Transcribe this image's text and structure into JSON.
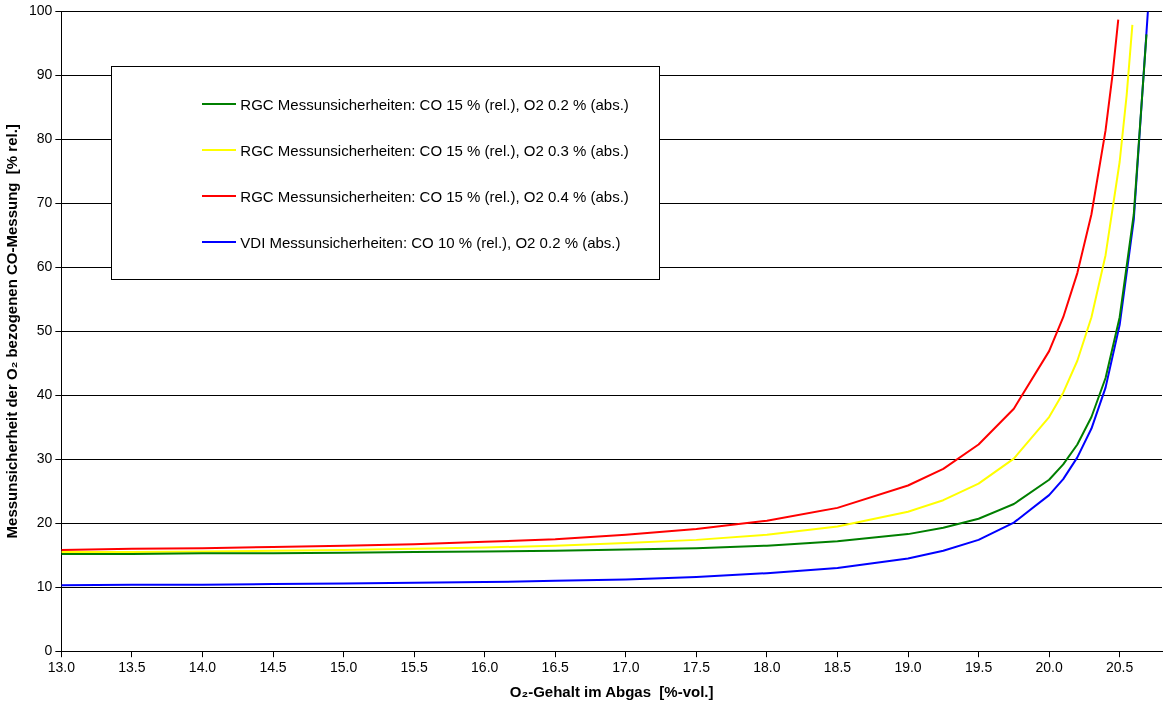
{
  "chart_data": {
    "type": "line",
    "xlabel": "O₂-Gehalt im Abgas  [%-vol.]",
    "ylabel": "Messunsicherheit der O₂ bezogenen CO-Messung  [% rel.]",
    "x": [
      13.0,
      13.5,
      14.0,
      14.5,
      15.0,
      15.5,
      16.0,
      16.5,
      17.0,
      17.5,
      18.0,
      18.5,
      19.0,
      19.25,
      19.5,
      19.75,
      20.0,
      20.1,
      20.2,
      20.3,
      20.4,
      20.5,
      20.6,
      20.69
    ],
    "series": [
      {
        "name": "RGC Messunsicherheiten: CO 15 % (rel.), O2 0.2 % (abs.)",
        "color": "#007f00",
        "values": [
          15.2,
          15.2,
          15.3,
          15.3,
          15.4,
          15.5,
          15.6,
          15.7,
          15.9,
          16.1,
          16.5,
          17.2,
          18.3,
          19.3,
          20.7,
          23.0,
          26.8,
          29.2,
          32.3,
          36.6,
          42.7,
          52.2,
          68.3,
          96.4
        ]
      },
      {
        "name": "RGC Messunsicherheiten: CO 15 % (rel.), O2 0.3 % (abs.)",
        "color": "#ffff00",
        "x": [
          13.0,
          13.5,
          14.0,
          14.5,
          15.0,
          15.5,
          16.0,
          16.5,
          17.0,
          17.5,
          18.0,
          18.5,
          19.0,
          19.25,
          19.5,
          19.75,
          20.0,
          20.1,
          20.2,
          20.3,
          20.4,
          20.5,
          20.55,
          20.59
        ],
        "values": [
          15.5,
          15.5,
          15.6,
          15.7,
          15.8,
          16.0,
          16.2,
          16.5,
          16.9,
          17.4,
          18.2,
          19.5,
          21.8,
          23.6,
          26.2,
          30.1,
          36.6,
          40.4,
          45.4,
          52.2,
          61.9,
          76.5,
          87.0,
          97.9
        ]
      },
      {
        "name": "RGC Messunsicherheiten: CO 15 % (rel.), O2 0.4 % (abs.)",
        "color": "#ff0000",
        "x": [
          13.0,
          13.5,
          14.0,
          14.5,
          15.0,
          15.5,
          16.0,
          16.5,
          17.0,
          17.5,
          18.0,
          18.5,
          19.0,
          19.25,
          19.5,
          19.75,
          20.0,
          20.1,
          20.2,
          20.3,
          20.4,
          20.45,
          20.49
        ],
        "values": [
          15.8,
          16.0,
          16.1,
          16.3,
          16.5,
          16.7,
          17.1,
          17.5,
          18.2,
          19.1,
          20.4,
          22.4,
          25.9,
          28.5,
          32.3,
          37.9,
          46.9,
          52.2,
          59.1,
          68.3,
          81.4,
          90.2,
          98.7
        ]
      },
      {
        "name": "VDI Messunsicherheiten: CO 10 % (rel.), O2 0.2 % (abs.)",
        "color": "#0000ff",
        "x": [
          13.0,
          13.5,
          14.0,
          14.5,
          15.0,
          15.5,
          16.0,
          16.5,
          17.0,
          17.5,
          18.0,
          18.5,
          19.0,
          19.25,
          19.5,
          19.75,
          20.0,
          20.1,
          20.2,
          20.3,
          20.4,
          20.5,
          20.6,
          20.7
        ],
        "values": [
          10.3,
          10.4,
          10.4,
          10.5,
          10.6,
          10.7,
          10.8,
          11.0,
          11.2,
          11.6,
          12.2,
          13.0,
          14.5,
          15.7,
          17.4,
          20.1,
          24.4,
          26.9,
          30.3,
          34.8,
          41.2,
          51.0,
          67.4,
          100
        ]
      }
    ],
    "xlim": [
      13.0,
      20.8
    ],
    "xticks": [
      {
        "value": 13,
        "label": "13.0"
      },
      {
        "value": 13.5,
        "label": "13.5"
      },
      {
        "value": 14,
        "label": "14.0"
      },
      {
        "value": 14.5,
        "label": "14.5"
      },
      {
        "value": 15,
        "label": "15.0"
      },
      {
        "value": 15.5,
        "label": "15.5"
      },
      {
        "value": 16,
        "label": "16.0"
      },
      {
        "value": 16.5,
        "label": "16.5"
      },
      {
        "value": 17,
        "label": "17.0"
      },
      {
        "value": 17.5,
        "label": "17.5"
      },
      {
        "value": 18,
        "label": "18.0"
      },
      {
        "value": 18.5,
        "label": "18.5"
      },
      {
        "value": 19,
        "label": "19.0"
      },
      {
        "value": 19.5,
        "label": "19.5"
      },
      {
        "value": 20,
        "label": "20.0"
      },
      {
        "value": 20.5,
        "label": "20.5"
      }
    ],
    "ylim": [
      0,
      100
    ],
    "yticks": [
      0,
      10,
      20,
      30,
      40,
      50,
      60,
      70,
      80,
      90,
      100
    ],
    "grid": "y",
    "legend": "top left",
    "marker": "none",
    "line_style": "solid"
  }
}
